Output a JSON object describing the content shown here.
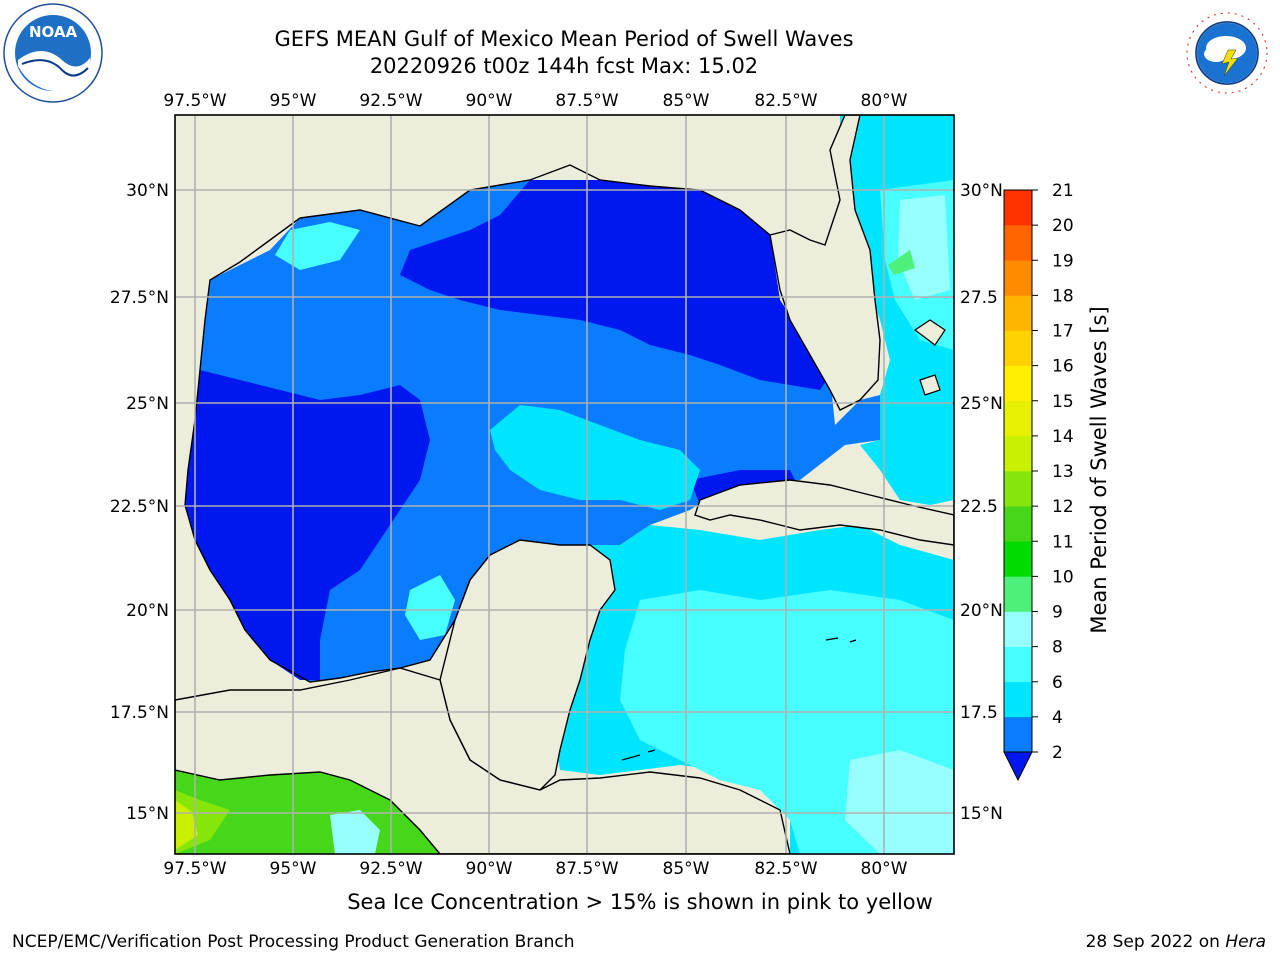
{
  "header": {
    "title_line1": "GEFS MEAN Gulf of Mexico Mean Period of Swell Waves",
    "title_line2": "20220926 t00z 144h fcst   Max: 15.02"
  },
  "logos": {
    "left": "noaa-logo-icon",
    "right": "national-weather-service-logo-icon",
    "left_text": "NOAA",
    "right_text": "NATIONAL WEATHER SERVICE"
  },
  "map": {
    "lon_ticks": [
      "97.5°W",
      "95°W",
      "92.5°W",
      "90°W",
      "87.5°W",
      "85°W",
      "82.5°W",
      "80°W"
    ],
    "lat_ticks_left": [
      "30°N",
      "27.5°N",
      "25°N",
      "22.5°N",
      "20°N",
      "17.5°N",
      "15°N"
    ],
    "lat_ticks_right": [
      "30°N",
      "27.5",
      "25°N",
      "22.5",
      "20°N",
      "17.5",
      "15°N"
    ],
    "land_color": "#ededdc",
    "grid_color": "#b0b0b0"
  },
  "colorbar": {
    "label": "Mean Period of Swell Waves [s]",
    "ticks": [
      "2",
      "4",
      "6",
      "8",
      "9",
      "10",
      "11",
      "12",
      "13",
      "14",
      "15",
      "16",
      "17",
      "18",
      "19",
      "20",
      "21"
    ],
    "colors": [
      "#0a7cff",
      "#00e5ff",
      "#48ffff",
      "#98ffff",
      "#4cf07a",
      "#00dc00",
      "#46d61a",
      "#86e60a",
      "#c8f000",
      "#e6f000",
      "#fff000",
      "#ffd200",
      "#ffb400",
      "#ff8c00",
      "#ff6400",
      "#ff3200"
    ],
    "under_color": "#0018f0"
  },
  "footer": {
    "note": "Sea Ice Concentration > 15% is shown in pink to yellow",
    "left": "NCEP/EMC/Verification Post Processing Product Generation Branch",
    "right_date": "28 Sep 2022 on",
    "right_host": "Hera"
  }
}
